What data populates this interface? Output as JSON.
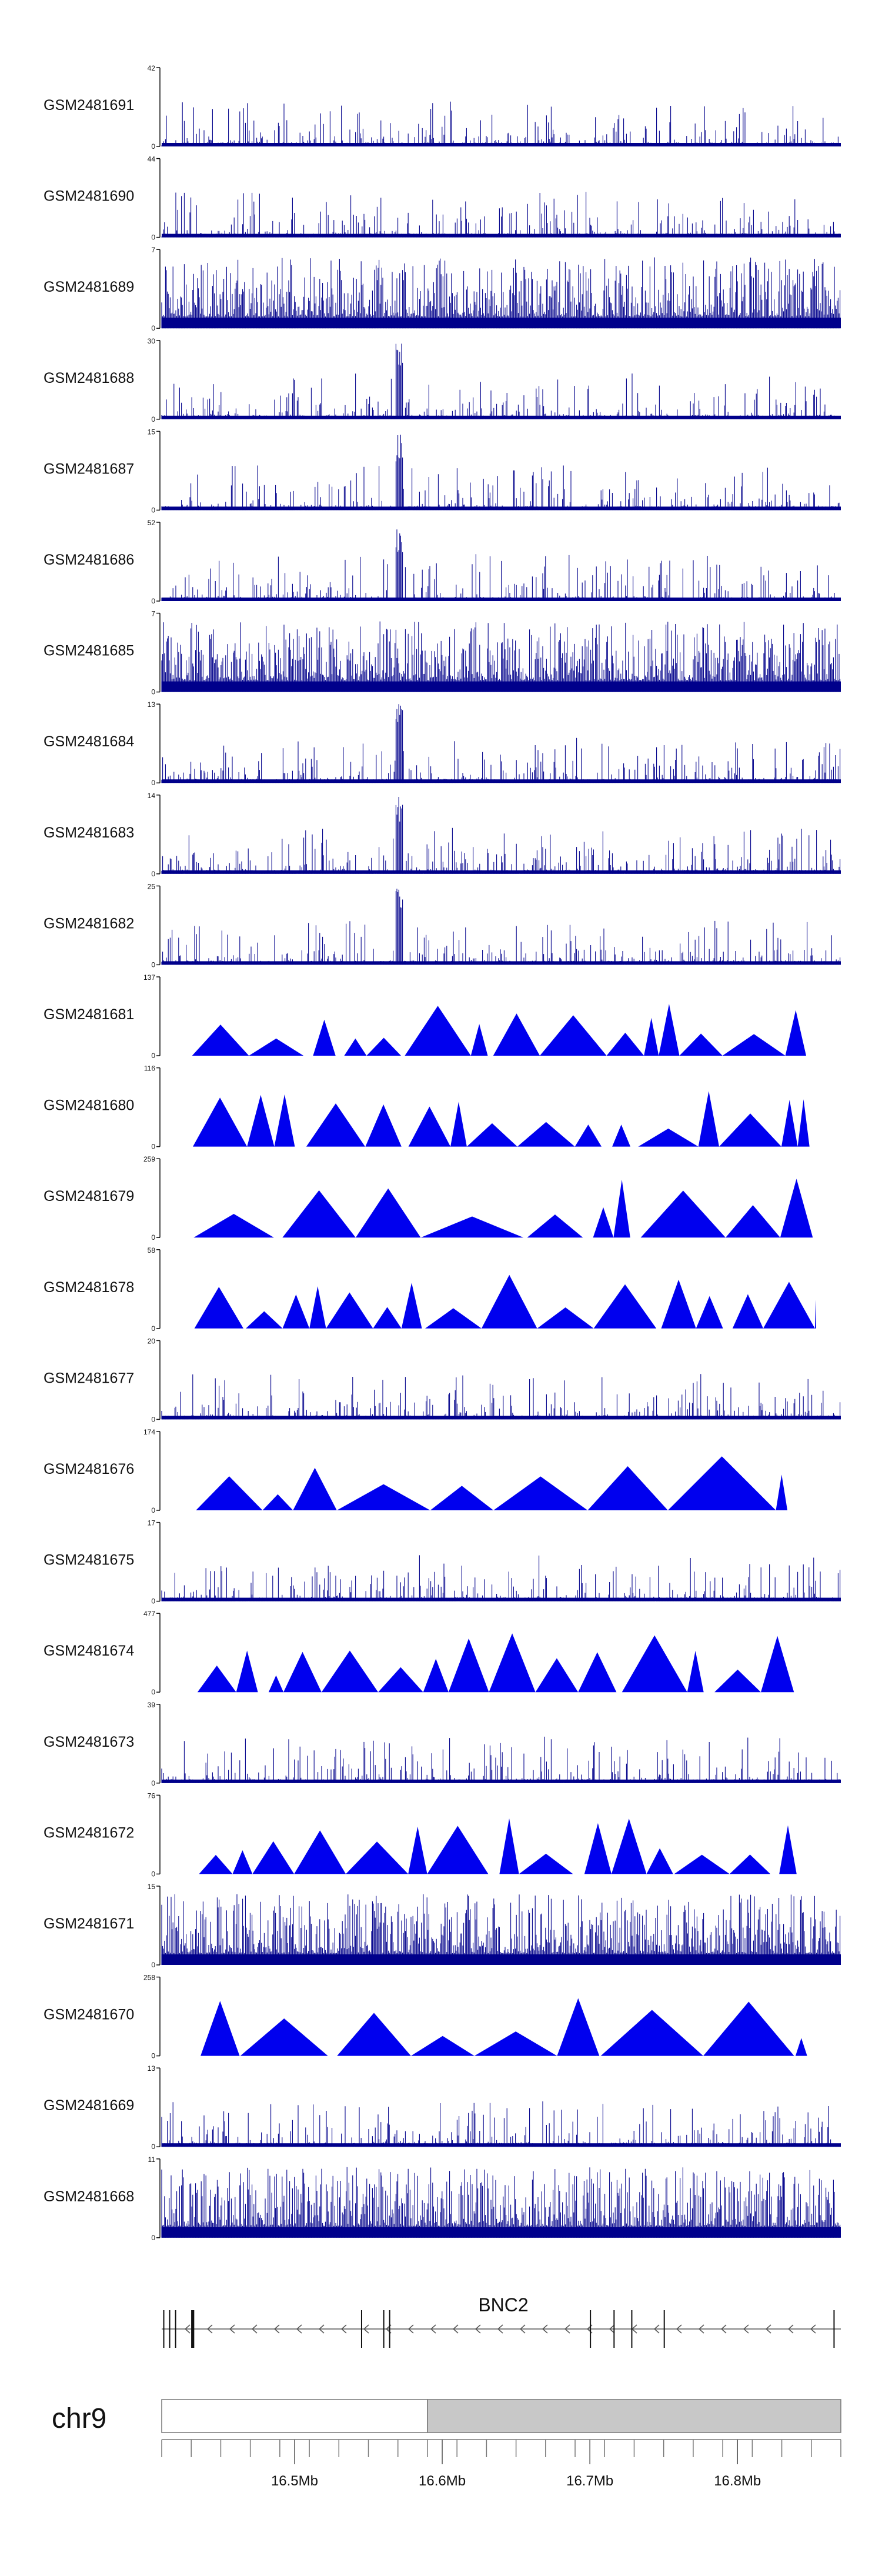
{
  "chart_data": {
    "type": "area",
    "chromosome": "chr9",
    "gene": {
      "name": "BNC2",
      "start_mb": 16.41,
      "end_mb": 16.87,
      "strand": "-"
    },
    "x_range_mb": [
      16.41,
      16.87
    ],
    "x_ticks": [
      16.5,
      16.6,
      16.7,
      16.8
    ],
    "x_tick_labels": [
      "16.5Mb",
      "16.6Mb",
      "16.7Mb",
      "16.8Mb"
    ],
    "highlight_start_mb": 16.59,
    "colors": {
      "signal": "#00008b",
      "tent": "#0000ee",
      "ideogram": "#c8c8c8"
    },
    "tracks": [
      {
        "name": "GSM2481691",
        "ymax": 42,
        "style": "bars"
      },
      {
        "name": "GSM2481690",
        "ymax": 44,
        "style": "bars"
      },
      {
        "name": "GSM2481689",
        "ymax": 7,
        "style": "dense"
      },
      {
        "name": "GSM2481688",
        "ymax": 30,
        "style": "bars"
      },
      {
        "name": "GSM2481687",
        "ymax": 15,
        "style": "bars"
      },
      {
        "name": "GSM2481686",
        "ymax": 52,
        "style": "bars"
      },
      {
        "name": "GSM2481685",
        "ymax": 7,
        "style": "dense"
      },
      {
        "name": "GSM2481684",
        "ymax": 13,
        "style": "bars"
      },
      {
        "name": "GSM2481683",
        "ymax": 14,
        "style": "bars"
      },
      {
        "name": "GSM2481682",
        "ymax": 25,
        "style": "bars"
      },
      {
        "name": "GSM2481681",
        "ymax": 137,
        "style": "tents"
      },
      {
        "name": "GSM2481680",
        "ymax": 116,
        "style": "tents"
      },
      {
        "name": "GSM2481679",
        "ymax": 259,
        "style": "tents"
      },
      {
        "name": "GSM2481678",
        "ymax": 58,
        "style": "tents"
      },
      {
        "name": "GSM2481677",
        "ymax": 20,
        "style": "bars"
      },
      {
        "name": "GSM2481676",
        "ymax": 174,
        "style": "tents"
      },
      {
        "name": "GSM2481675",
        "ymax": 17,
        "style": "bars"
      },
      {
        "name": "GSM2481674",
        "ymax": 477,
        "style": "tents"
      },
      {
        "name": "GSM2481673",
        "ymax": 39,
        "style": "bars"
      },
      {
        "name": "GSM2481672",
        "ymax": 76,
        "style": "tents"
      },
      {
        "name": "GSM2481671",
        "ymax": 15,
        "style": "dense"
      },
      {
        "name": "GSM2481670",
        "ymax": 258,
        "style": "tents"
      },
      {
        "name": "GSM2481669",
        "ymax": 13,
        "style": "bars"
      },
      {
        "name": "GSM2481668",
        "ymax": 11,
        "style": "dense"
      }
    ]
  }
}
